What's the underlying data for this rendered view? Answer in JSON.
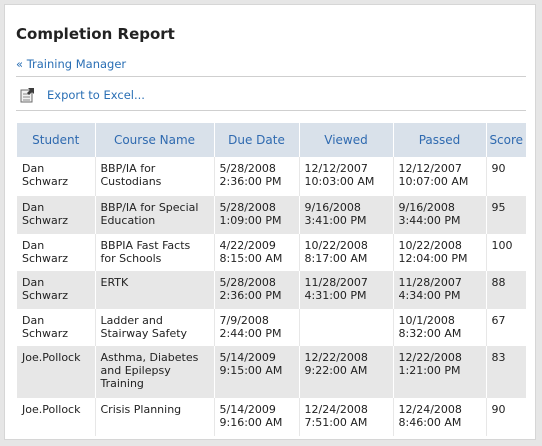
{
  "page": {
    "title": "Completion Report",
    "back_link": "« Training Manager",
    "export_label": "Export to Excel..."
  },
  "table": {
    "columns": [
      "Student",
      "Course Name",
      "Due Date",
      "Viewed",
      "Passed",
      "Score"
    ],
    "rows": [
      [
        "Dan\nSchwarz",
        "BBP/IA for\nCustodians",
        "5/28/2008\n2:36:00 PM",
        "12/12/2007\n10:03:00 AM",
        "12/12/2007\n10:07:00 AM",
        "90"
      ],
      [
        "Dan\nSchwarz",
        "BBP/IA for Special\nEducation",
        "5/28/2008\n1:09:00 PM",
        "9/16/2008\n3:41:00 PM",
        "9/16/2008\n3:44:00 PM",
        "95"
      ],
      [
        "Dan\nSchwarz",
        "BBPIA Fast Facts\nfor Schools",
        "4/22/2009\n8:15:00 AM",
        "10/22/2008\n8:17:00 AM",
        "10/22/2008\n12:04:00 PM",
        "100"
      ],
      [
        "Dan\nSchwarz",
        "ERTK",
        "5/28/2008\n2:36:00 PM",
        "11/28/2007\n4:31:00 PM",
        "11/28/2007\n4:34:00 PM",
        "88"
      ],
      [
        "Dan\nSchwarz",
        "Ladder and\nStairway Safety",
        "7/9/2008\n2:44:00 PM",
        "",
        "10/1/2008\n8:32:00 AM",
        "67"
      ],
      [
        "Joe.Pollock",
        "Asthma, Diabetes\nand Epilepsy\nTraining",
        "5/14/2009\n9:15:00 AM",
        "12/22/2008\n9:22:00 AM",
        "12/22/2008\n1:21:00 PM",
        "83"
      ],
      [
        "Joe.Pollock",
        "Crisis Planning",
        "5/14/2009\n9:16:00 AM",
        "12/24/2008\n7:51:00 AM",
        "12/24/2008\n8:46:00 AM",
        "90"
      ]
    ]
  },
  "colors": {
    "link": "#2a6fb5",
    "header_bg": "#d9e1ea",
    "alt_row_bg": "#e7e7e7"
  },
  "icons": {
    "export": "excel-export-icon"
  }
}
